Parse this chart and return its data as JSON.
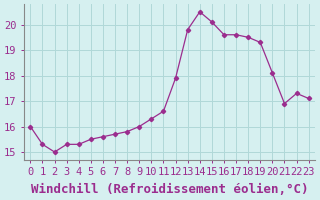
{
  "x": [
    0,
    1,
    2,
    3,
    4,
    5,
    6,
    7,
    8,
    9,
    10,
    11,
    12,
    13,
    14,
    15,
    16,
    17,
    18,
    19,
    20,
    21,
    22,
    23
  ],
  "y": [
    16.0,
    15.3,
    15.0,
    15.3,
    15.3,
    15.5,
    15.6,
    15.7,
    15.8,
    16.0,
    16.3,
    16.6,
    17.9,
    19.8,
    20.5,
    20.1,
    19.6,
    19.6,
    19.5,
    19.3,
    18.1,
    16.9,
    17.3,
    17.1
  ],
  "ylim": [
    14.7,
    20.8
  ],
  "yticks": [
    15,
    16,
    17,
    18,
    19,
    20
  ],
  "line_color": "#9b2d8e",
  "bg_color": "#d6f0f0",
  "grid_color": "#b0d8d8",
  "xlabel": "Windchill (Refroidissement éolien,°C)",
  "xlabel_fontsize": 9,
  "tick_fontsize": 7.5
}
